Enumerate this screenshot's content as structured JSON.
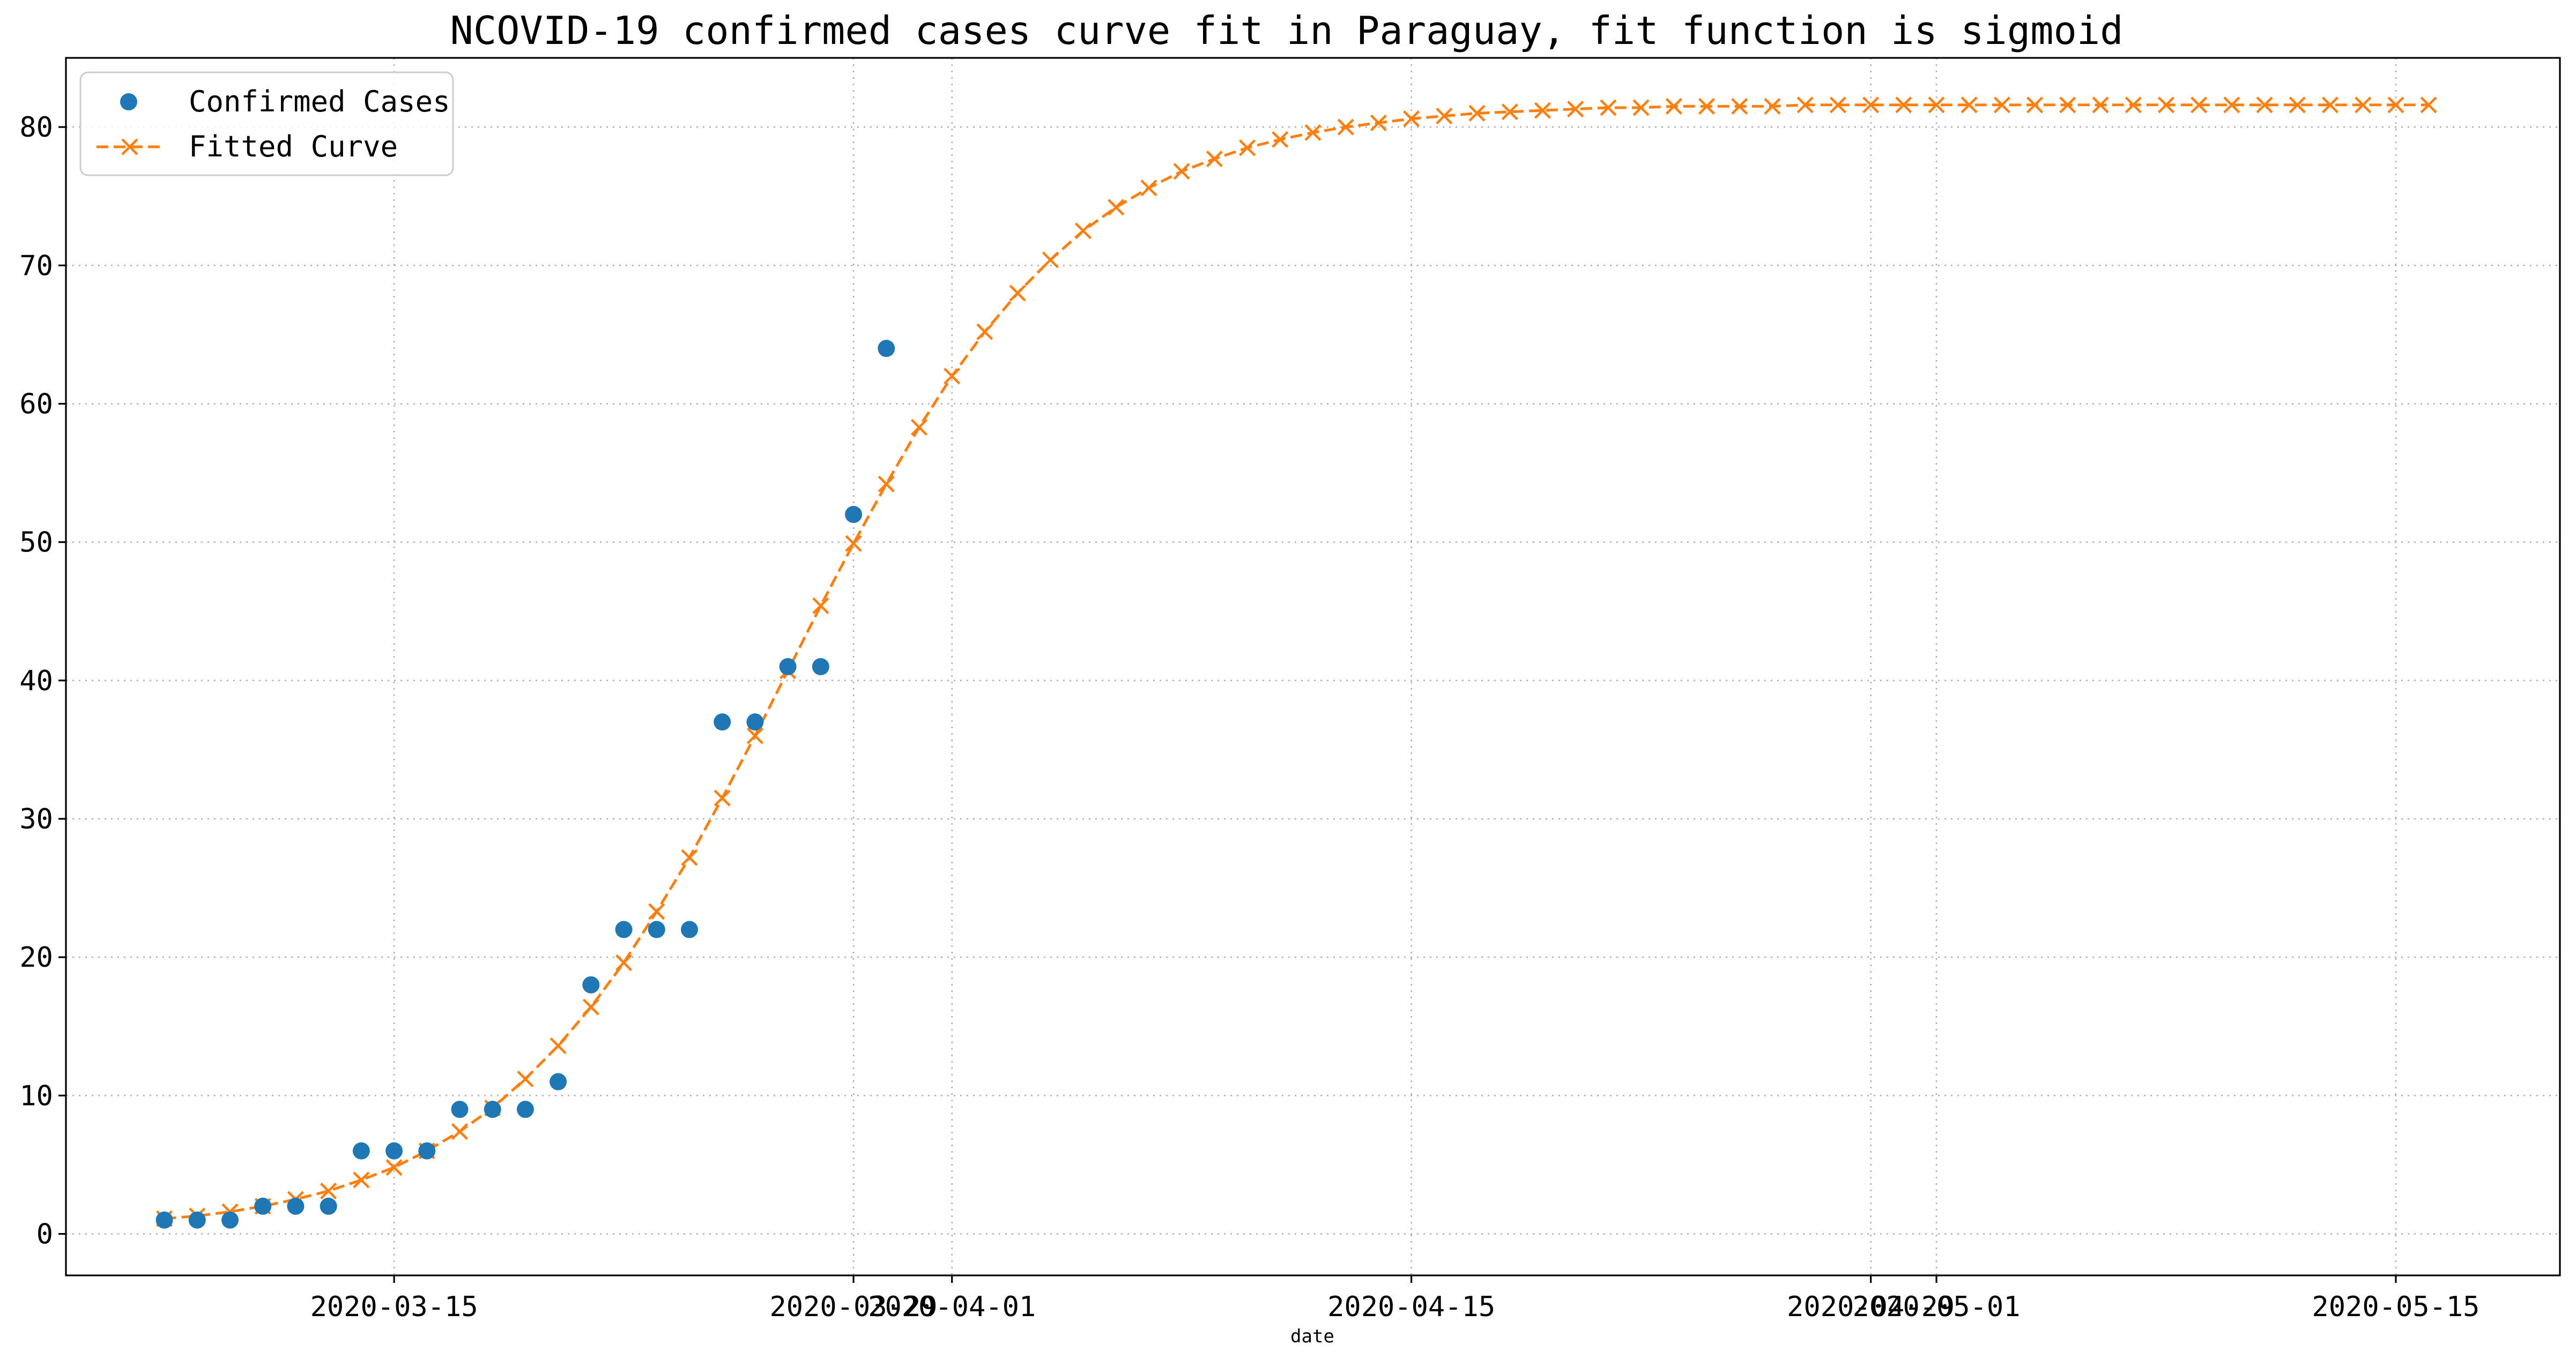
{
  "chart_data": {
    "type": "line",
    "title": "NCOVID-19 confirmed cases curve fit in Paraguay, fit function is sigmoid",
    "xlabel": "date",
    "ylabel": "",
    "x_type": "date",
    "xlim": [
      "2020-03-05",
      "2020-05-20"
    ],
    "ylim": [
      -3,
      85
    ],
    "y_ticks": [
      0,
      10,
      20,
      30,
      40,
      50,
      60,
      70,
      80
    ],
    "x_ticks": [
      {
        "date": "2020-03-15",
        "label": "2020-03-15"
      },
      {
        "date": "2020-03-29",
        "label": "2020-03-29"
      },
      {
        "date": "2020-04-01",
        "label": "2020-04-01"
      },
      {
        "date": "2020-04-15",
        "label": "2020-04-15"
      },
      {
        "date": "2020-04-29",
        "label": "2020-04-29"
      },
      {
        "date": "2020-05-01",
        "label": "2020-05-01"
      },
      {
        "date": "2020-05-15",
        "label": "2020-05-15"
      }
    ],
    "grid": true,
    "legend_position": "top-left",
    "colors": {
      "confirmed": "#1f77b4",
      "fitted": "#ff7f0e"
    },
    "series": [
      {
        "name": "Confirmed Cases",
        "style": "markers",
        "marker": "circle",
        "x": [
          "2020-03-08",
          "2020-03-09",
          "2020-03-10",
          "2020-03-11",
          "2020-03-12",
          "2020-03-13",
          "2020-03-14",
          "2020-03-15",
          "2020-03-16",
          "2020-03-17",
          "2020-03-18",
          "2020-03-19",
          "2020-03-20",
          "2020-03-21",
          "2020-03-22",
          "2020-03-23",
          "2020-03-24",
          "2020-03-25",
          "2020-03-26",
          "2020-03-27",
          "2020-03-28",
          "2020-03-29",
          "2020-03-30"
        ],
        "values": [
          1,
          1,
          1,
          2,
          2,
          2,
          6,
          6,
          6,
          9,
          9,
          9,
          11,
          18,
          22,
          22,
          22,
          37,
          37,
          41,
          41,
          52,
          64
        ]
      },
      {
        "name": "Fitted Curve",
        "style": "dashed-line",
        "marker": "x",
        "x_start": "2020-03-08",
        "x_step_days": 1,
        "values": [
          1.1,
          1.3,
          1.6,
          2.0,
          2.5,
          3.1,
          3.9,
          4.8,
          6.0,
          7.4,
          9.1,
          11.2,
          13.6,
          16.4,
          19.6,
          23.3,
          27.2,
          31.5,
          36.0,
          40.7,
          45.4,
          49.9,
          54.2,
          58.3,
          62.0,
          65.2,
          68.0,
          70.4,
          72.5,
          74.2,
          75.6,
          76.8,
          77.7,
          78.5,
          79.1,
          79.6,
          80.0,
          80.3,
          80.6,
          80.8,
          81.0,
          81.1,
          81.2,
          81.3,
          81.4,
          81.4,
          81.5,
          81.5,
          81.5,
          81.5,
          81.6,
          81.6,
          81.6,
          81.6,
          81.6,
          81.6,
          81.6,
          81.6,
          81.6,
          81.6,
          81.6,
          81.6,
          81.6,
          81.6,
          81.6,
          81.6,
          81.6,
          81.6,
          81.6,
          81.6
        ]
      }
    ]
  }
}
